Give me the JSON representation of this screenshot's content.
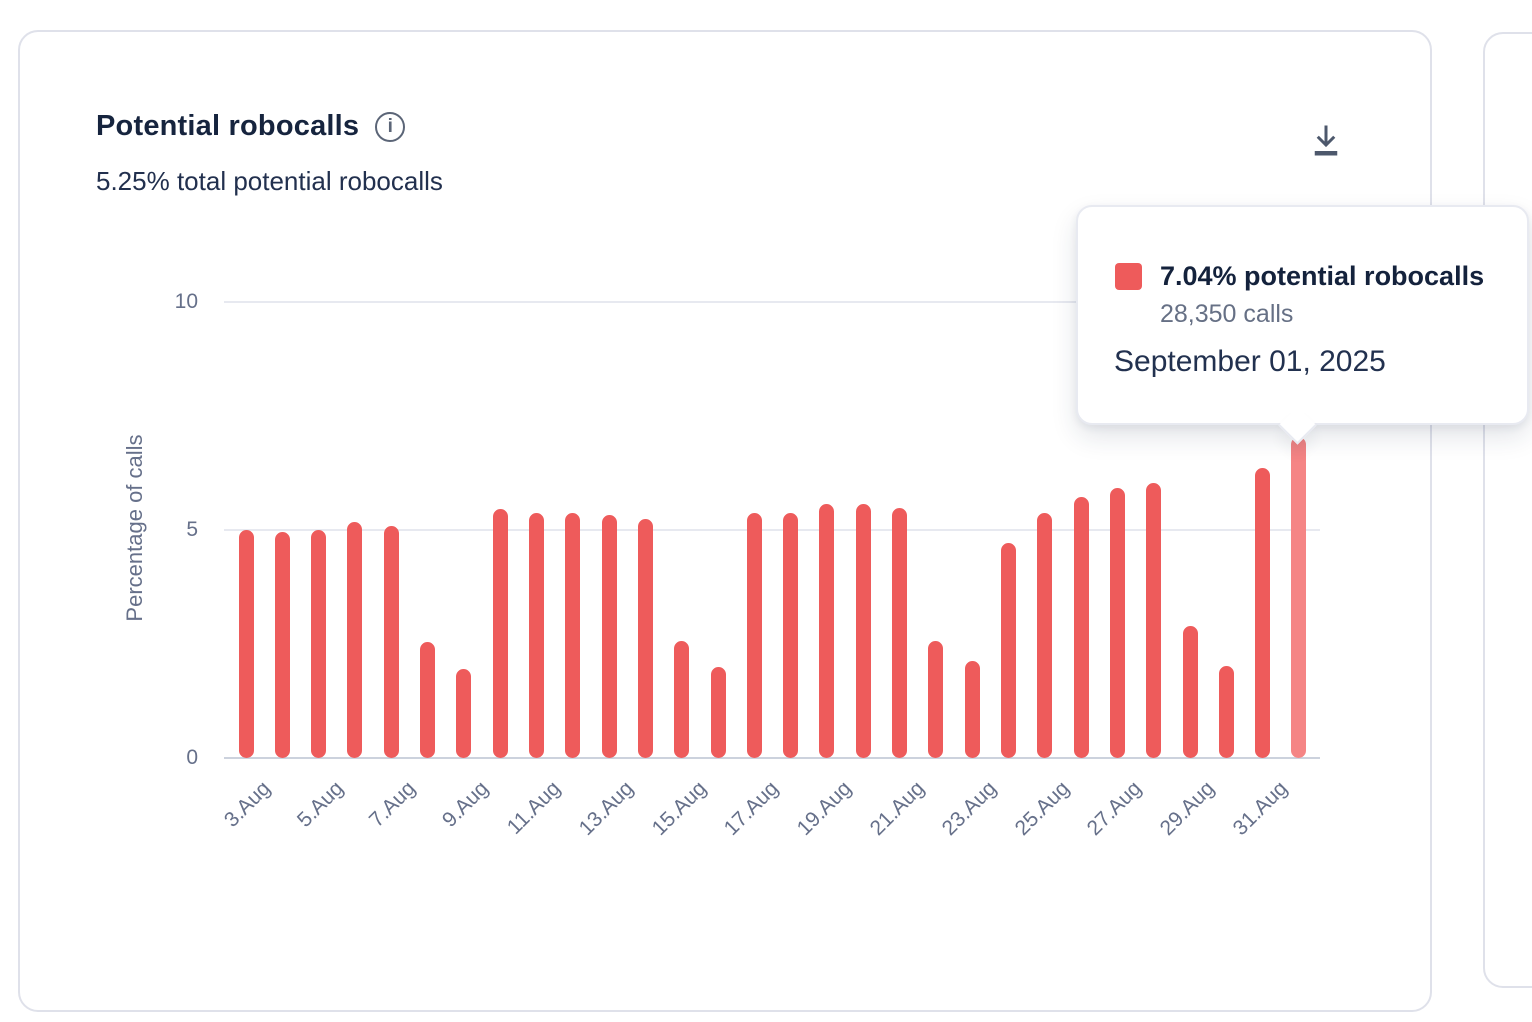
{
  "card": {
    "title": "Potential robocalls",
    "subtitle": "5.25% total potential robocalls",
    "info_glyph": "i"
  },
  "tooltip": {
    "swatch_color": "#ee5b5b",
    "title": "7.04% potential robocalls",
    "calls": "28,350 calls",
    "date": "September 01, 2025"
  },
  "chart_data": {
    "type": "bar",
    "title": "Potential robocalls",
    "xlabel": "",
    "ylabel": "Percentage of calls",
    "ylim": [
      0,
      10
    ],
    "yticks": [
      0,
      5,
      10
    ],
    "grid": "horizontal",
    "legend_position": "none",
    "bar_color": "#ee5b5b",
    "highlight_color": "#f58585",
    "highlight_index": 29,
    "categories": [
      "Aug 3",
      "Aug 4",
      "Aug 5",
      "Aug 6",
      "Aug 7",
      "Aug 8",
      "Aug 9",
      "Aug 10",
      "Aug 11",
      "Aug 12",
      "Aug 13",
      "Aug 14",
      "Aug 15",
      "Aug 16",
      "Aug 17",
      "Aug 18",
      "Aug 19",
      "Aug 20",
      "Aug 21",
      "Aug 22",
      "Aug 23",
      "Aug 24",
      "Aug 25",
      "Aug 26",
      "Aug 27",
      "Aug 28",
      "Aug 29",
      "Aug 30",
      "Aug 31",
      "Sep 1"
    ],
    "values": [
      5.0,
      4.95,
      5.0,
      5.18,
      5.08,
      2.55,
      1.95,
      5.45,
      5.37,
      5.37,
      5.33,
      5.25,
      2.57,
      2.0,
      5.37,
      5.37,
      5.57,
      5.58,
      5.48,
      2.57,
      2.13,
      4.72,
      5.38,
      5.72,
      5.92,
      6.02,
      2.9,
      2.02,
      6.35,
      7.04
    ],
    "x_tick_labels": [
      "3.Aug",
      "5.Aug",
      "7.Aug",
      "9.Aug",
      "11.Aug",
      "13.Aug",
      "15.Aug",
      "17.Aug",
      "19.Aug",
      "21.Aug",
      "23.Aug",
      "25.Aug",
      "27.Aug",
      "29.Aug",
      "31.Aug"
    ]
  }
}
